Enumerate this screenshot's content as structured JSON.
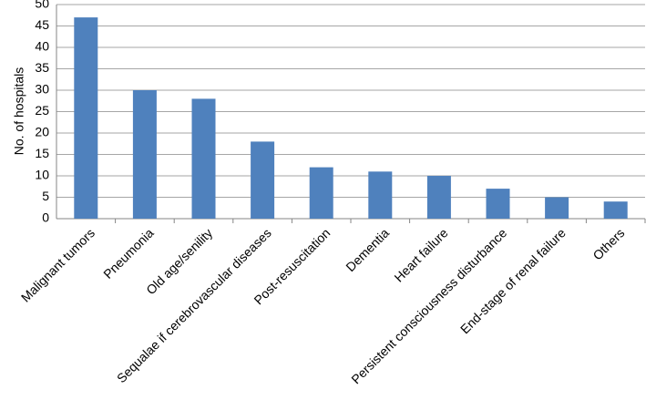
{
  "chart_data": {
    "type": "bar",
    "y_label": "No. of hospitals",
    "categories": [
      "Malignant tumors",
      "Pneumonia",
      "Old age/senility",
      "Sequalae if cerebrovascular diseases",
      "Post-resuscitation",
      "Dementia",
      "Heart failure",
      "Persistent consciousness disturbance",
      "End-stage of renal failure",
      "Others"
    ],
    "values": [
      47,
      30,
      28,
      18,
      12,
      11,
      10,
      7,
      5,
      4
    ],
    "color": "#4f81bd",
    "ylim": [
      0,
      50
    ],
    "yticks": [
      0,
      5,
      10,
      15,
      20,
      25,
      30,
      35,
      40,
      45,
      50
    ],
    "grid": true
  }
}
